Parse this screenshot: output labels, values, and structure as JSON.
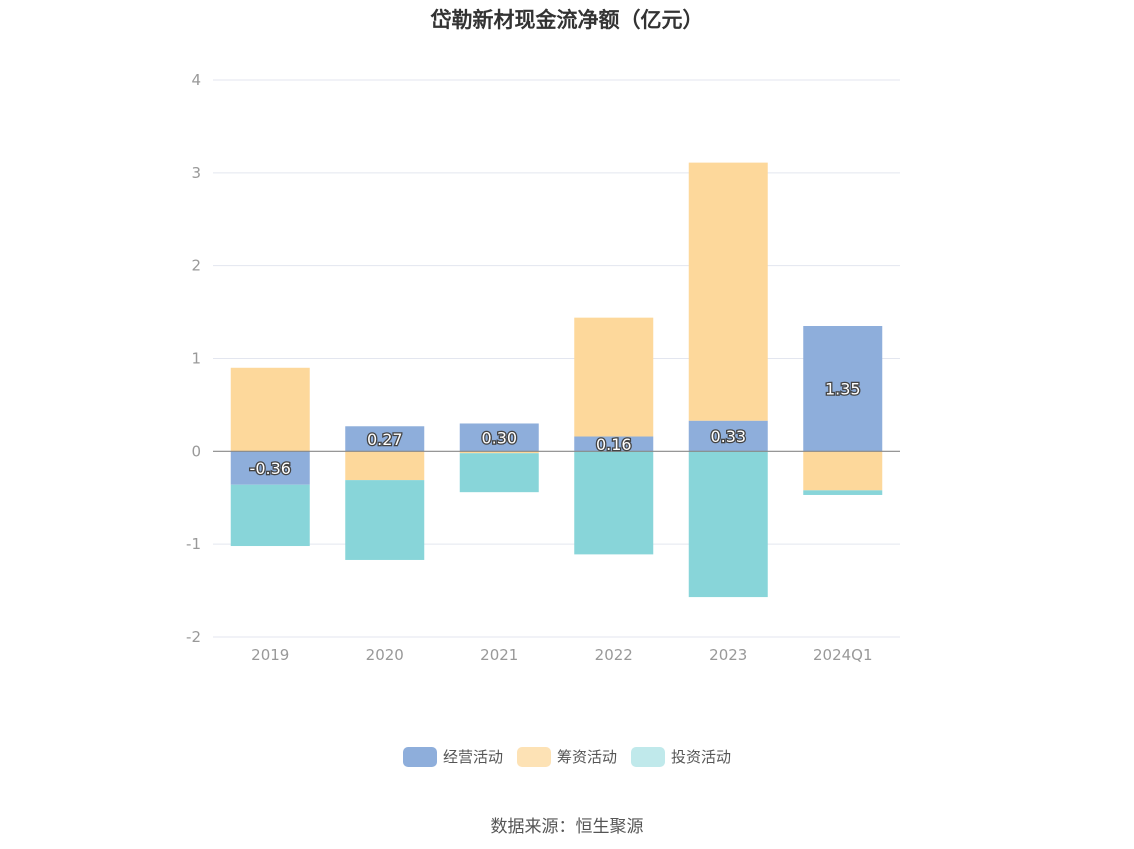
{
  "title": "岱勒新材现金流净额（亿元）",
  "source": "数据来源：恒生聚源",
  "chart_data": {
    "type": "bar",
    "stacked": true,
    "categories": [
      "2019",
      "2020",
      "2021",
      "2022",
      "2023",
      "2024Q1"
    ],
    "ylim": [
      -2,
      4
    ],
    "yticks": [
      4,
      3,
      2,
      1,
      0,
      -1,
      -2
    ],
    "grid": true,
    "legend_position": "bottom",
    "series": [
      {
        "name": "经营活动",
        "color": "#8eaedb",
        "values": [
          -0.36,
          0.27,
          0.3,
          0.16,
          0.33,
          1.35
        ],
        "show_labels": true
      },
      {
        "name": "筹资活动",
        "color": "#fdd89b",
        "values": [
          0.9,
          -0.31,
          -0.02,
          1.28,
          2.78,
          -0.42
        ],
        "show_labels": false
      },
      {
        "name": "投资活动",
        "color": "#88d5d9",
        "values": [
          -0.66,
          -0.86,
          -0.42,
          -1.11,
          -1.57,
          -0.05
        ],
        "show_labels": false
      }
    ]
  },
  "legend": [
    {
      "label": "经营活动",
      "color": "#8eaedb"
    },
    {
      "label": "筹资活动",
      "color": "#fde2b5"
    },
    {
      "label": "投资活动",
      "color": "#c0e9eb"
    }
  ]
}
